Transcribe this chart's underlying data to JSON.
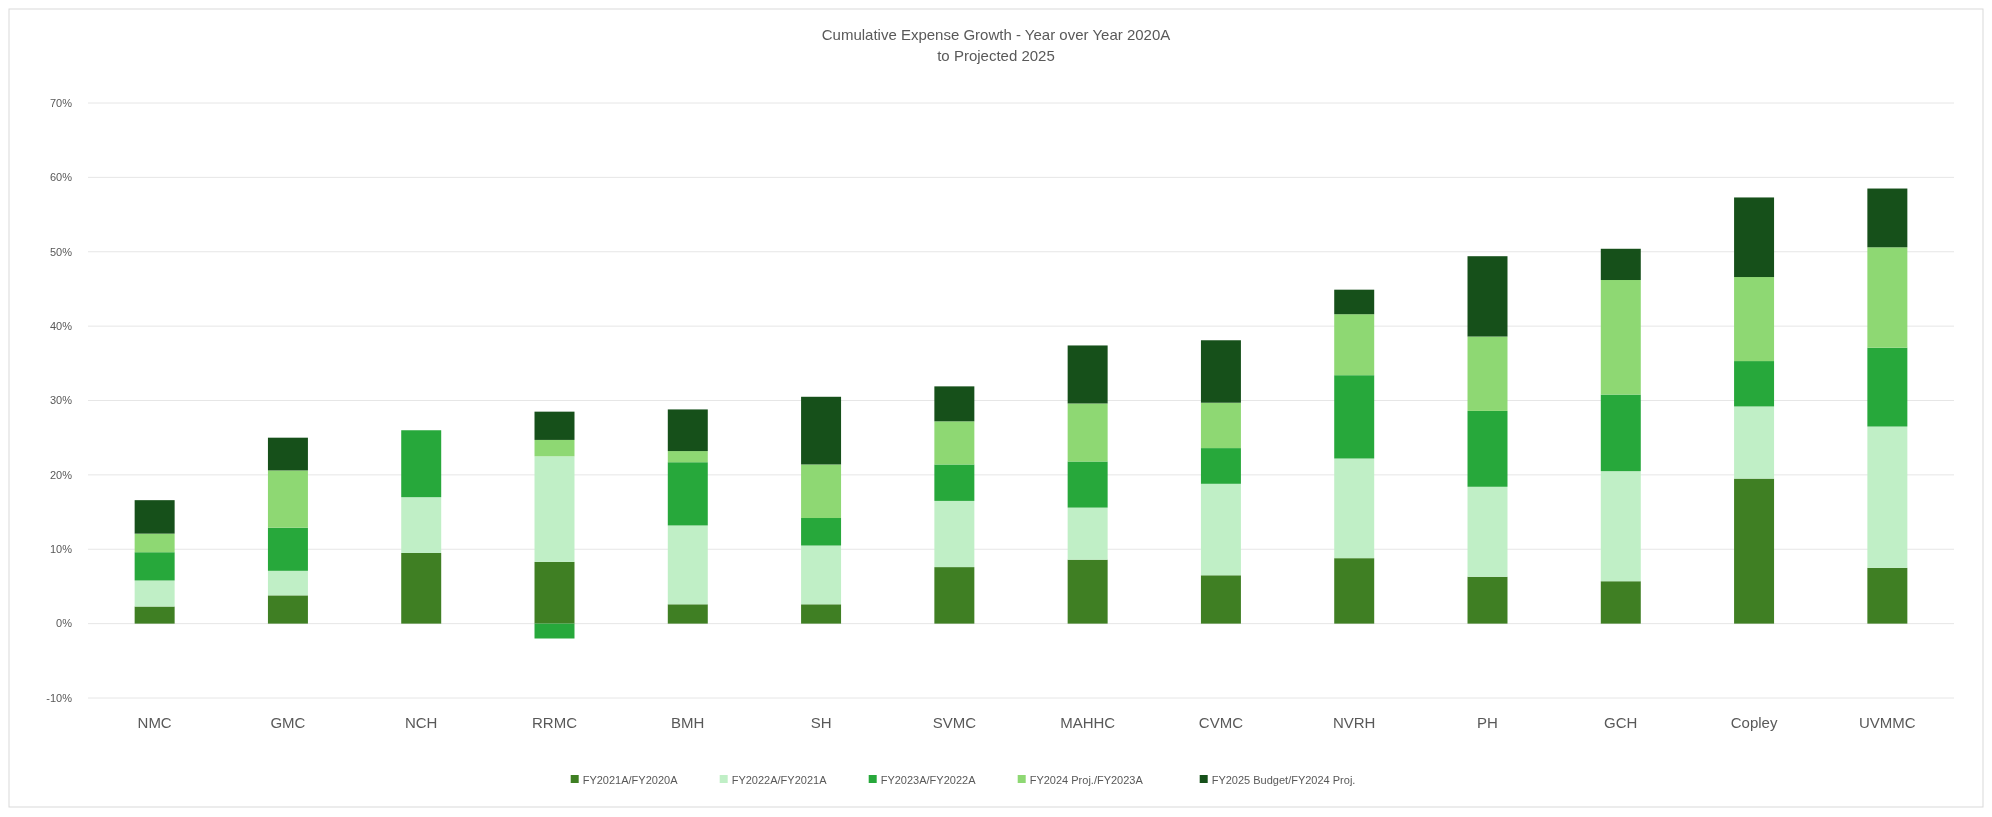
{
  "chart_data": {
    "type": "bar",
    "title": "Cumulative Expense Growth - Year over Year 2020A\nto Projected 2025",
    "stacked": true,
    "categories": [
      "NMC",
      "GMC",
      "NCH",
      "RRMC",
      "BMH",
      "SH",
      "SVMC",
      "MAHHC",
      "CVMC",
      "NVRH",
      "PH",
      "GCH",
      "Copley",
      "UVMMC"
    ],
    "series": [
      {
        "name": "FY2021A/FY2020A",
        "color": "#3f7f23",
        "values": [
          2.3,
          3.8,
          9.5,
          8.3,
          2.6,
          2.6,
          7.6,
          8.6,
          6.5,
          8.8,
          6.3,
          5.7,
          19.5,
          7.5
        ]
      },
      {
        "name": "FY2022A/FY2021A",
        "color": "#c0efc6",
        "values": [
          3.5,
          3.3,
          7.5,
          14.2,
          10.6,
          7.9,
          8.9,
          7.0,
          12.3,
          13.4,
          12.1,
          14.8,
          9.7,
          19.0
        ]
      },
      {
        "name": "FY2023A/FY2022A",
        "color": "#27a83b",
        "values": [
          3.8,
          5.8,
          9.0,
          -2.0,
          8.5,
          3.7,
          4.9,
          6.2,
          4.8,
          11.2,
          10.2,
          10.3,
          6.1,
          10.6
        ]
      },
      {
        "name": "FY2024 Proj./FY2023A",
        "color": "#8ed873",
        "values": [
          2.5,
          7.7,
          null,
          2.2,
          1.5,
          7.2,
          5.8,
          7.8,
          6.1,
          8.2,
          10.0,
          15.4,
          11.3,
          13.5
        ]
      },
      {
        "name": "FY2025 Budget/FY2024 Proj.",
        "color": "#16501a",
        "values": [
          4.5,
          4.4,
          null,
          3.8,
          5.6,
          9.1,
          4.7,
          7.8,
          8.4,
          3.3,
          10.8,
          4.2,
          10.7,
          7.9
        ]
      }
    ],
    "ylim": [
      -10,
      70
    ],
    "yticks": [
      {
        "value": -10,
        "label": "-10%"
      },
      {
        "value": 0,
        "label": "0%"
      },
      {
        "value": 10,
        "label": "10%"
      },
      {
        "value": 20,
        "label": "20%"
      },
      {
        "value": 30,
        "label": "30%"
      },
      {
        "value": 40,
        "label": "40%"
      },
      {
        "value": 50,
        "label": "50%"
      },
      {
        "value": 60,
        "label": "60%"
      },
      {
        "value": 70,
        "label": "70%"
      }
    ],
    "grid": "y",
    "legend": "bottom"
  }
}
